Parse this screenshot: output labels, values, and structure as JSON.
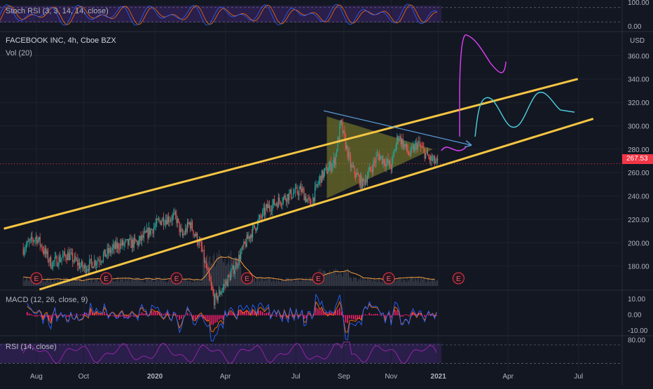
{
  "symbol_title": "FACEBOOK INC, 4h, Cboe BZX",
  "volume_label": "Vol (20)",
  "currency": "USD",
  "last_price": "267.53",
  "stoch_label": "Stoch RSI (3, 3, 14, 14, close)",
  "macd_label": "MACD (12, 26, close, 9)",
  "rsi_label": "RSI (14, close)",
  "earnings_marker": "E",
  "colors": {
    "background": "#131722",
    "up": "#26a69a",
    "down": "#ef5350",
    "channel": "#f5c542",
    "triangle_fill": "#8b8a2a",
    "projection_pink": "#e040fb",
    "projection_cyan": "#4dd0e1",
    "oscillator": "#9c27b0",
    "macd_line": "#2962ff",
    "signal_line": "#ff6d00",
    "histogram": "#ff1f6d",
    "volume_ma": "#f39c3b",
    "last_price": "#f23645"
  },
  "chart_data": [
    {
      "type": "line",
      "name": "stoch_rsi",
      "ylim": [
        0,
        100
      ],
      "y_ticks": [
        "100.00",
        "0.00"
      ],
      "bands": [
        20,
        80
      ]
    },
    {
      "type": "candlestick",
      "ylim": [
        160,
        380
      ],
      "y_ticks": [
        "360.00",
        "340.00",
        "320.00",
        "300.00",
        "280.00",
        "260.00",
        "240.00",
        "220.00",
        "200.00",
        "180.00"
      ],
      "x_ticks": [
        "Aug",
        "Oct",
        "2020",
        "Apr",
        "Jul",
        "Sep",
        "Nov",
        "2021",
        "Apr",
        "Jul"
      ],
      "price_path": [
        [
          "2019-07-15",
          195
        ],
        [
          "2019-08-01",
          205
        ],
        [
          "2019-08-20",
          182
        ],
        [
          "2019-09-10",
          190
        ],
        [
          "2019-10-01",
          178
        ],
        [
          "2019-10-25",
          188
        ],
        [
          "2019-11-15",
          198
        ],
        [
          "2019-12-10",
          200
        ],
        [
          "2020-01-10",
          220
        ],
        [
          "2020-01-28",
          222
        ],
        [
          "2020-02-05",
          205
        ],
        [
          "2020-02-15",
          217
        ],
        [
          "2020-03-01",
          195
        ],
        [
          "2020-03-18",
          150
        ],
        [
          "2020-04-10",
          175
        ],
        [
          "2020-05-01",
          205
        ],
        [
          "2020-05-25",
          230
        ],
        [
          "2020-06-20",
          240
        ],
        [
          "2020-07-08",
          245
        ],
        [
          "2020-07-20",
          232
        ],
        [
          "2020-08-01",
          255
        ],
        [
          "2020-08-20",
          270
        ],
        [
          "2020-08-28",
          302
        ],
        [
          "2020-09-10",
          265
        ],
        [
          "2020-09-25",
          250
        ],
        [
          "2020-10-05",
          262
        ],
        [
          "2020-10-15",
          275
        ],
        [
          "2020-11-01",
          265
        ],
        [
          "2020-11-10",
          292
        ],
        [
          "2020-11-25",
          275
        ],
        [
          "2020-12-05",
          285
        ],
        [
          "2020-12-20",
          272
        ],
        [
          "2020-12-31",
          267.53
        ]
      ],
      "channel_upper": [
        [
          "2019-06-20",
          212
        ],
        [
          "2021-06-30",
          340
        ]
      ],
      "channel_lower": [
        [
          "2019-08-05",
          160
        ],
        [
          "2021-07-20",
          306
        ]
      ],
      "triangle": [
        [
          "2020-08-10",
          308
        ],
        [
          "2020-12-25",
          280
        ],
        [
          "2020-08-10",
          238
        ]
      ],
      "earnings_dates": [
        "2019-08-01",
        "2019-10-30",
        "2020-01-29",
        "2020-04-29",
        "2020-07-30",
        "2020-10-29",
        "2021-01-27"
      ]
    },
    {
      "type": "line",
      "name": "macd",
      "ylim": [
        -14,
        14
      ],
      "y_ticks": [
        "10.00",
        "0.00",
        "-10.00"
      ]
    },
    {
      "type": "line",
      "name": "rsi",
      "ylim": [
        10,
        85
      ],
      "y_ticks": [
        "80.00"
      ],
      "bands": [
        30,
        70
      ]
    }
  ]
}
